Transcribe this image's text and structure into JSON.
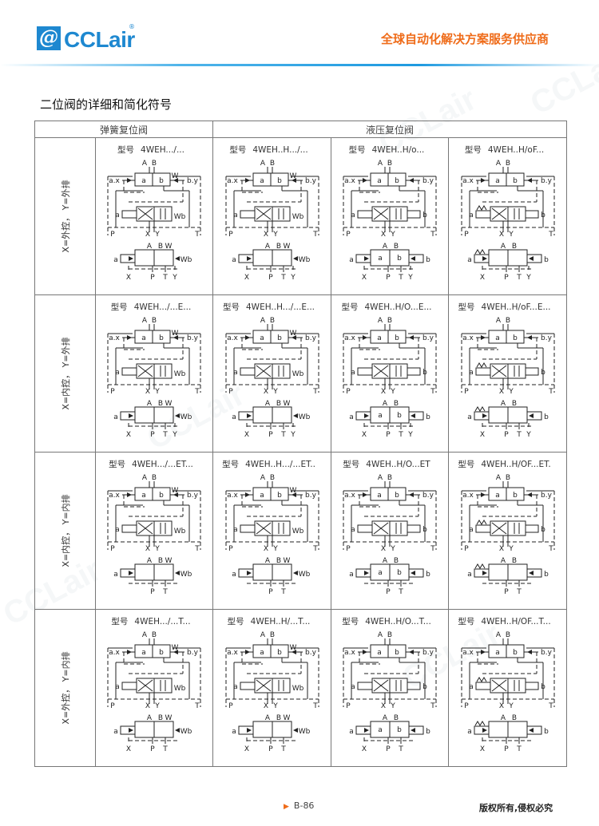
{
  "header": {
    "logo_text": "CCLair",
    "logo_mark": "@",
    "slogan": "全球自动化解决方案服务供应商",
    "brand_color": "#1e88d0",
    "accent_color": "#ef6c1a"
  },
  "section_title": "二位阀的详细和简化符号",
  "table": {
    "col_headers": [
      "弹簧复位阀",
      "液压复位阀"
    ],
    "model_prefix": "型号",
    "symbol_labels": {
      "A": "A",
      "B": "B",
      "ax": "a.x",
      "by": "b.y",
      "a": "a",
      "b": "b",
      "P": "P",
      "X": "X",
      "Y": "Y",
      "T": "T",
      "W": "W",
      "Wb": "Wb"
    },
    "rows": [
      {
        "label": "X=外控， Y=外排",
        "ports": [
          "X",
          "P",
          "T",
          "Y"
        ],
        "models": [
          "4WEH.../...",
          "4WEH..H.../...",
          "4WEH..H/o...",
          "4WEH..H/oF..."
        ]
      },
      {
        "label": "X=内控， Y=外排",
        "ports": [
          "X",
          "P",
          "T",
          "Y"
        ],
        "models": [
          "4WEH.../...E...",
          "4WEH..H.../...E...",
          "4WEH..H/O...E...",
          "4WEH..H/oF...E..."
        ]
      },
      {
        "label": "X=内控， Y=内排",
        "ports": [
          "P",
          "T"
        ],
        "models": [
          "4WEH.../...ET...",
          "4WEH..H.../...ET..",
          "4WEH..H/O...ET",
          "4WEH..H/OF...ET."
        ]
      },
      {
        "label": "X=外控， Y=内排",
        "ports": [
          "X",
          "P",
          "T"
        ],
        "models": [
          "4WEH.../...T...",
          "4WEH..H/...T...",
          "4WEH..H/O...T...",
          "4WEH..H/OF...T..."
        ]
      }
    ]
  },
  "watermark": "CCLair",
  "footer": {
    "page": "B-86",
    "copyright": "版权所有,侵权必究"
  }
}
